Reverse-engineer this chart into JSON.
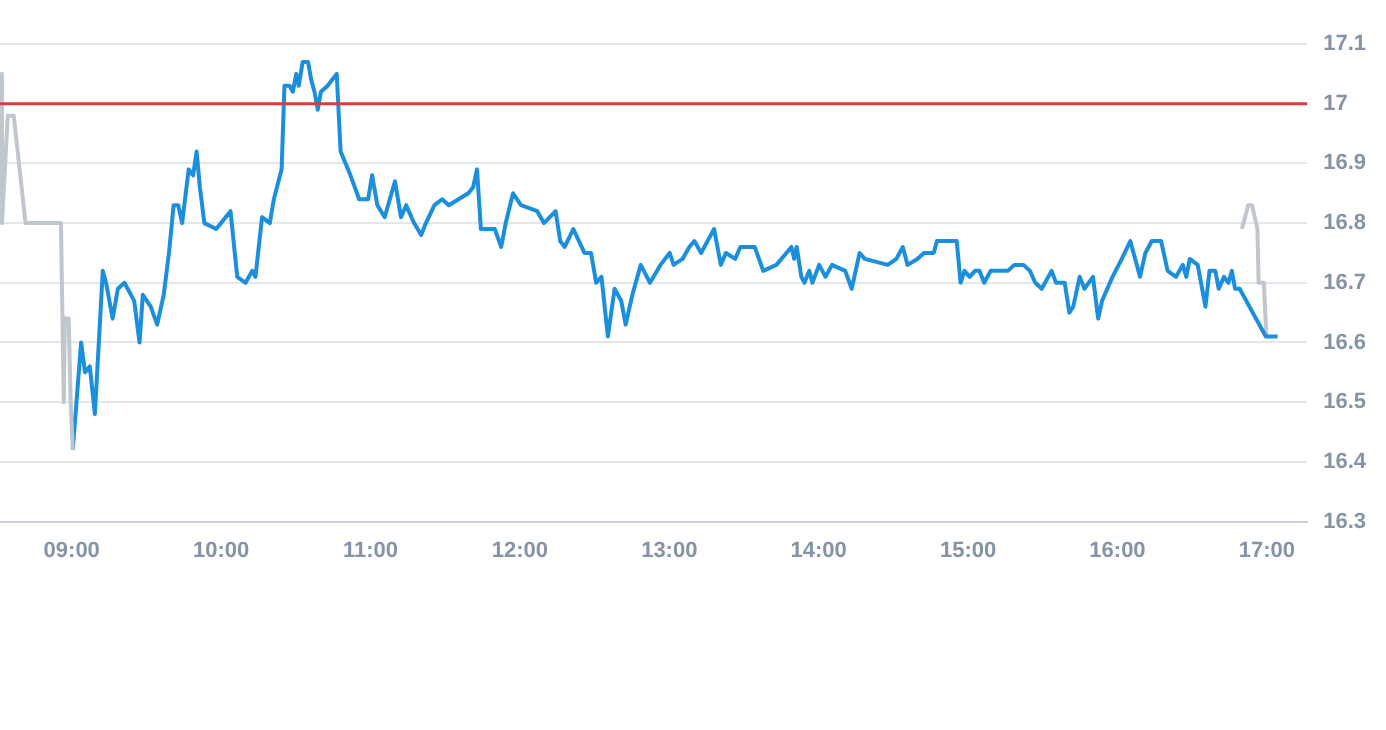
{
  "chart_data": {
    "type": "line",
    "xlim": [
      8.52,
      17.27
    ],
    "ylim": [
      16.3,
      17.1
    ],
    "xticks": [
      {
        "value": 9,
        "label": "09:00"
      },
      {
        "value": 10,
        "label": "10:00"
      },
      {
        "value": 11,
        "label": "11:00"
      },
      {
        "value": 12,
        "label": "12:00"
      },
      {
        "value": 13,
        "label": "13:00"
      },
      {
        "value": 14,
        "label": "14:00"
      },
      {
        "value": 15,
        "label": "15:00"
      },
      {
        "value": 16,
        "label": "16:00"
      },
      {
        "value": 17,
        "label": "17:00"
      }
    ],
    "yticks": [
      16.3,
      16.4,
      16.5,
      16.6,
      16.7,
      16.8,
      16.9,
      17,
      17.1
    ],
    "grid": "y",
    "legend": false,
    "marker": "none",
    "ref_lines": [
      {
        "axis": "y",
        "value": 17,
        "color": "#e0393e"
      }
    ],
    "series": [
      {
        "color": "#bfc6ce",
        "x": [
          8.52,
          8.533,
          8.572,
          8.612,
          8.691,
          8.928,
          8.947,
          8.954,
          8.98,
          8.993,
          9.007
        ],
        "values": [
          17.05,
          16.8,
          16.98,
          16.98,
          16.8,
          16.8,
          16.5,
          16.64,
          16.64,
          16.5,
          16.42
        ]
      },
      {
        "color": "#1b8fdd",
        "x": [
          9.007,
          9.063,
          9.089,
          9.121,
          9.155,
          9.208,
          9.23,
          9.274,
          9.309,
          9.353,
          9.418,
          9.454,
          9.476,
          9.529,
          9.572,
          9.616,
          9.651,
          9.682,
          9.713,
          9.739,
          9.783,
          9.813,
          9.836,
          9.858,
          9.888,
          9.967,
          10.063,
          10.108,
          10.164,
          10.208,
          10.23,
          10.274,
          10.326,
          10.353,
          10.405,
          10.424,
          10.458,
          10.48,
          10.503,
          10.52,
          10.546,
          10.582,
          10.603,
          10.625,
          10.647,
          10.668,
          10.713,
          10.774,
          10.8,
          10.866,
          10.924,
          10.984,
          11.011,
          11.046,
          11.095,
          11.164,
          11.204,
          11.239,
          11.292,
          11.339,
          11.371,
          11.428,
          11.48,
          11.524,
          11.589,
          11.655,
          11.687,
          11.713,
          11.739,
          11.832,
          11.875,
          11.905,
          11.954,
          12.007,
          12.116,
          12.161,
          12.239,
          12.27,
          12.3,
          12.358,
          12.432,
          12.476,
          12.511,
          12.546,
          12.589,
          12.634,
          12.678,
          12.708,
          12.753,
          12.809,
          12.871,
          12.941,
          13.003,
          13.029,
          13.089,
          13.134,
          13.168,
          13.213,
          13.3,
          13.345,
          13.379,
          13.441,
          13.476,
          13.572,
          13.629,
          13.717,
          13.818,
          13.836,
          13.853,
          13.884,
          13.905,
          13.937,
          13.958,
          14.003,
          14.046,
          14.089,
          14.178,
          14.221,
          14.274,
          14.309,
          14.463,
          14.52,
          14.563,
          14.595,
          14.661,
          14.704,
          14.77,
          14.792,
          14.845,
          14.924,
          14.95,
          14.976,
          15.011,
          15.046,
          15.076,
          15.108,
          15.151,
          15.266,
          15.309,
          15.339,
          15.371,
          15.414,
          15.45,
          15.493,
          15.559,
          15.589,
          15.647,
          15.678,
          15.704,
          15.747,
          15.779,
          15.836,
          15.871,
          15.897,
          15.967,
          16.029,
          16.086,
          16.151,
          16.187,
          16.23,
          16.261,
          16.292,
          16.336,
          16.392,
          16.437,
          16.461,
          16.484,
          16.537,
          16.589,
          16.616,
          16.655,
          16.678,
          16.713,
          16.743,
          16.766,
          16.787,
          16.818,
          16.993,
          17.072
        ],
        "values": [
          16.42,
          16.6,
          16.55,
          16.56,
          16.48,
          16.72,
          16.7,
          16.64,
          16.69,
          16.7,
          16.67,
          16.6,
          16.68,
          16.66,
          16.63,
          16.68,
          16.75,
          16.83,
          16.83,
          16.8,
          16.89,
          16.88,
          16.92,
          16.86,
          16.8,
          16.79,
          16.82,
          16.71,
          16.7,
          16.72,
          16.71,
          16.81,
          16.8,
          16.84,
          16.89,
          17.03,
          17.03,
          17.02,
          17.05,
          17.03,
          17.07,
          17.07,
          17.04,
          17.02,
          16.99,
          17.02,
          17.03,
          17.05,
          16.92,
          16.88,
          16.84,
          16.84,
          16.88,
          16.83,
          16.81,
          16.87,
          16.81,
          16.83,
          16.8,
          16.78,
          16.8,
          16.83,
          16.84,
          16.83,
          16.84,
          16.85,
          16.86,
          16.89,
          16.79,
          16.79,
          16.76,
          16.8,
          16.85,
          16.83,
          16.82,
          16.8,
          16.82,
          16.77,
          16.76,
          16.79,
          16.75,
          16.75,
          16.7,
          16.71,
          16.61,
          16.69,
          16.67,
          16.63,
          16.68,
          16.73,
          16.7,
          16.73,
          16.75,
          16.73,
          16.74,
          16.76,
          16.77,
          16.75,
          16.79,
          16.73,
          16.75,
          16.74,
          16.76,
          16.76,
          16.72,
          16.73,
          16.76,
          16.74,
          16.76,
          16.71,
          16.7,
          16.72,
          16.7,
          16.73,
          16.71,
          16.73,
          16.72,
          16.69,
          16.75,
          16.74,
          16.73,
          16.74,
          16.76,
          16.73,
          16.74,
          16.75,
          16.75,
          16.77,
          16.77,
          16.77,
          16.7,
          16.72,
          16.71,
          16.72,
          16.72,
          16.7,
          16.72,
          16.72,
          16.73,
          16.73,
          16.73,
          16.72,
          16.7,
          16.69,
          16.72,
          16.7,
          16.7,
          16.65,
          16.66,
          16.71,
          16.69,
          16.71,
          16.64,
          16.67,
          16.71,
          16.74,
          16.77,
          16.71,
          16.75,
          16.77,
          16.77,
          16.77,
          16.72,
          16.71,
          16.73,
          16.71,
          16.74,
          16.73,
          16.66,
          16.72,
          16.72,
          16.69,
          16.71,
          16.7,
          16.72,
          16.69,
          16.69,
          16.61,
          16.61
        ]
      },
      {
        "color": "#bfc6ce",
        "x": [
          16.833,
          16.875,
          16.901,
          16.937,
          16.945,
          16.98,
          16.997
        ],
        "values": [
          16.79,
          16.83,
          16.83,
          16.79,
          16.7,
          16.7,
          16.61
        ]
      }
    ]
  }
}
